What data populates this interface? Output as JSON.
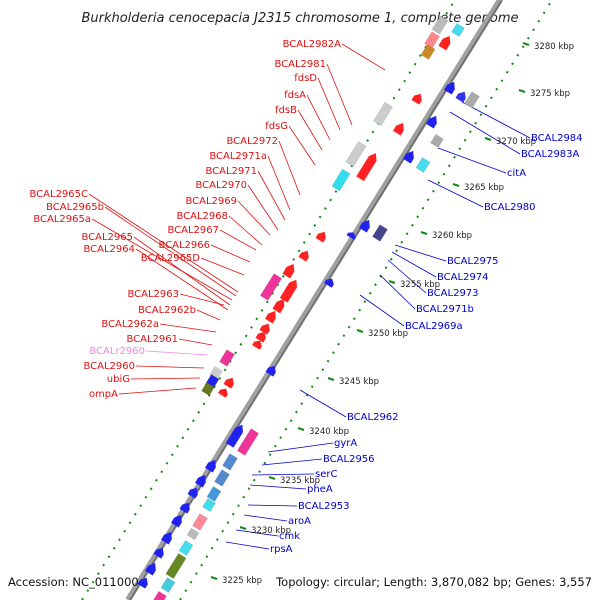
{
  "title": "Burkholderia cenocepacia J2315 chromosome 1, complete genome",
  "footer": {
    "accession": "Accession: NC_011000",
    "topology": "Topology: circular; Length: 3,870,082 bp; Genes: 3,557"
  },
  "colors": {
    "minus_label": "#dd1111",
    "plus_label": "#0000cc",
    "rna_label": "#ee88dd",
    "backbone": "#999999",
    "tick": "#118811"
  },
  "kbp_ticks": [
    "3280 kbp",
    "3275 kbp",
    "3270 kbp",
    "3265 kbp",
    "3260 kbp",
    "3255 kbp",
    "3250 kbp",
    "3245 kbp",
    "3240 kbp",
    "3235 kbp",
    "3230 kbp",
    "3225 kbp"
  ],
  "left_labels": [
    {
      "text": "BCAL2982A",
      "kind": "minus"
    },
    {
      "text": "BCAL2981",
      "kind": "minus"
    },
    {
      "text": "fdsD",
      "kind": "minus"
    },
    {
      "text": "fdsA",
      "kind": "minus"
    },
    {
      "text": "fdsB",
      "kind": "minus"
    },
    {
      "text": "fdsG",
      "kind": "minus"
    },
    {
      "text": "BCAL2972",
      "kind": "minus"
    },
    {
      "text": "BCAL2971a",
      "kind": "minus"
    },
    {
      "text": "BCAL2971",
      "kind": "minus"
    },
    {
      "text": "BCAL2970",
      "kind": "minus"
    },
    {
      "text": "BCAL2969",
      "kind": "minus"
    },
    {
      "text": "BCAL2968",
      "kind": "minus"
    },
    {
      "text": "BCAL2967",
      "kind": "minus"
    },
    {
      "text": "BCAL2966",
      "kind": "minus"
    },
    {
      "text": "BCAL2965D",
      "kind": "minus"
    },
    {
      "text": "BCAL2965C",
      "kind": "minus"
    },
    {
      "text": "BCAL2965b",
      "kind": "minus"
    },
    {
      "text": "BCAL2965a",
      "kind": "minus"
    },
    {
      "text": "BCAL2965",
      "kind": "minus"
    },
    {
      "text": "BCAL2964",
      "kind": "minus"
    },
    {
      "text": "BCAL2963",
      "kind": "minus"
    },
    {
      "text": "BCAL2962b",
      "kind": "minus"
    },
    {
      "text": "BCAL2962a",
      "kind": "minus"
    },
    {
      "text": "BCAL2961",
      "kind": "minus"
    },
    {
      "text": "BCALr2960",
      "kind": "rna"
    },
    {
      "text": "BCAL2960",
      "kind": "minus"
    },
    {
      "text": "ubiG",
      "kind": "minus"
    },
    {
      "text": "ompA",
      "kind": "minus"
    }
  ],
  "right_labels": [
    {
      "text": "BCAL2984",
      "kind": "plus"
    },
    {
      "text": "BCAL2983A",
      "kind": "plus"
    },
    {
      "text": "citA",
      "kind": "plus"
    },
    {
      "text": "BCAL2980",
      "kind": "plus"
    },
    {
      "text": "BCAL2975",
      "kind": "plus"
    },
    {
      "text": "BCAL2974",
      "kind": "plus"
    },
    {
      "text": "BCAL2973",
      "kind": "plus"
    },
    {
      "text": "BCAL2971b",
      "kind": "plus"
    },
    {
      "text": "BCAL2969a",
      "kind": "plus"
    },
    {
      "text": "BCAL2962",
      "kind": "plus"
    },
    {
      "text": "gyrA",
      "kind": "plus"
    },
    {
      "text": "BCAL2956",
      "kind": "plus"
    },
    {
      "text": "serC",
      "kind": "plus"
    },
    {
      "text": "pheA",
      "kind": "plus"
    },
    {
      "text": "BCAL2953",
      "kind": "plus"
    },
    {
      "text": "aroA",
      "kind": "plus"
    },
    {
      "text": "cmk",
      "kind": "plus"
    },
    {
      "text": "rpsA",
      "kind": "plus"
    }
  ]
}
